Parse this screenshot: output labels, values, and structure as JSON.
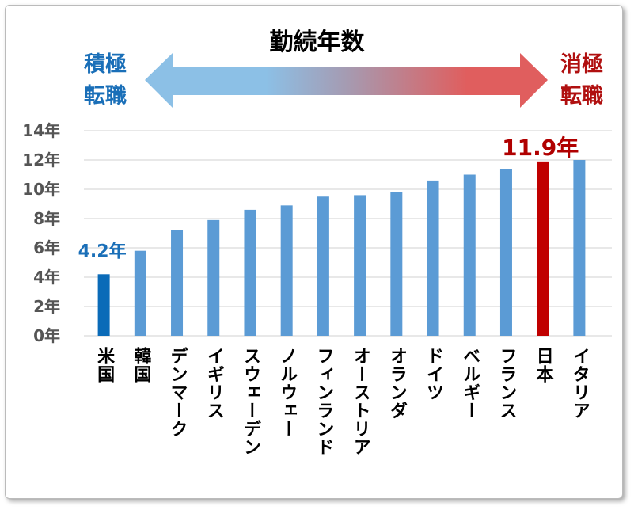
{
  "chart_data": {
    "type": "bar",
    "title": "勤続年数",
    "left_label": "積極\n転職",
    "right_label": "消極\n転職",
    "left_label_lines": [
      "積極",
      "転職"
    ],
    "right_label_lines": [
      "消極",
      "転職"
    ],
    "categories": [
      "米国",
      "韓国",
      "デンマーク",
      "イギリス",
      "スウェーデン",
      "ノルウェー",
      "フィンランド",
      "オーストリア",
      "オランダ",
      "ドイツ",
      "ベルギー",
      "フランス",
      "日本",
      "イタリア"
    ],
    "values": [
      4.2,
      5.8,
      7.2,
      7.9,
      8.6,
      8.9,
      9.5,
      9.6,
      9.8,
      10.6,
      11.0,
      11.4,
      11.9,
      12.0
    ],
    "ylim": [
      0,
      14
    ],
    "yticks": [
      0,
      2,
      4,
      6,
      8,
      10,
      12,
      14
    ],
    "ytick_labels": [
      "0年",
      "2年",
      "4年",
      "6年",
      "8年",
      "10年",
      "12年",
      "14年"
    ],
    "xlabel": "",
    "ylabel": "",
    "grid": true,
    "annotations": [
      {
        "category": "米国",
        "text": "4.2年",
        "color": "#1a6fb8"
      },
      {
        "category": "日本",
        "text": "11.9年",
        "color": "#b00000"
      }
    ],
    "colors": {
      "default": "#5b9bd5",
      "米国": "#0a6bb8",
      "日本": "#c00000",
      "arrow_left": "#8cc0e6",
      "arrow_right": "#e05e5e"
    }
  }
}
